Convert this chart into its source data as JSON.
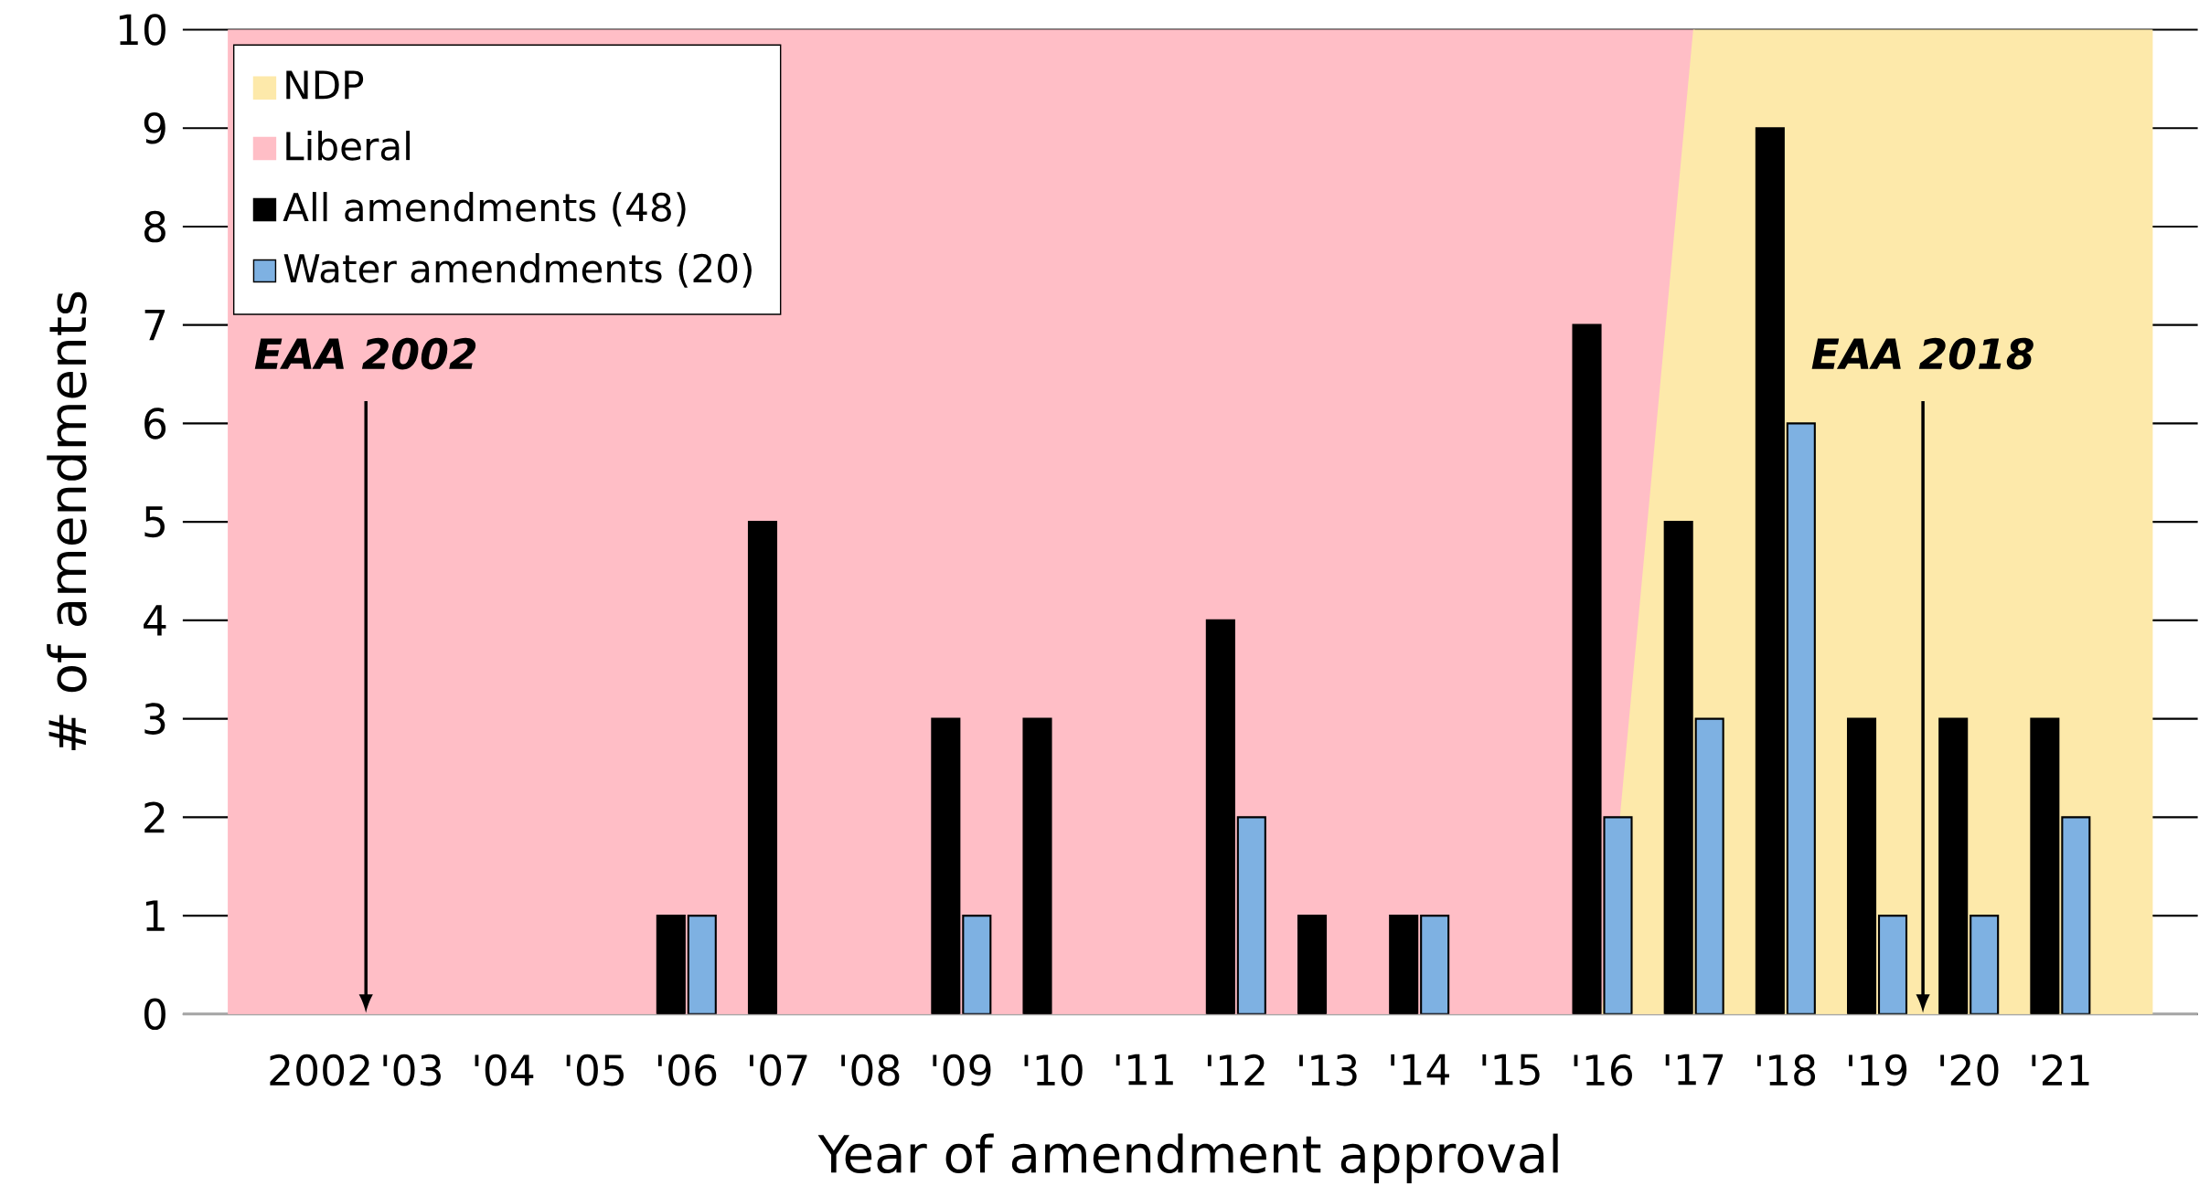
{
  "chart_data": {
    "type": "bar",
    "xlabel": "Year of amendment approval",
    "ylabel": "# of amendments",
    "categories": [
      null,
      "2002",
      "'03",
      "'04",
      "'05",
      "'06",
      "'07",
      "'08",
      "'09",
      "'10",
      "'11",
      "'12",
      "'13",
      "'14",
      "'15",
      "'16",
      "'17",
      "'18",
      "'19",
      "'20",
      "'21",
      null
    ],
    "series": [
      {
        "name": "NDP",
        "type": "area",
        "color": "#fde9aa",
        "values": [
          null,
          null,
          null,
          null,
          null,
          null,
          null,
          null,
          null,
          null,
          null,
          null,
          null,
          null,
          null,
          0,
          10,
          10,
          10,
          10,
          10,
          10
        ]
      },
      {
        "name": "Liberal",
        "type": "area",
        "color": "#ffbec6",
        "values": [
          10,
          10,
          10,
          10,
          10,
          10,
          10,
          10,
          10,
          10,
          10,
          10,
          10,
          10,
          10,
          10,
          10,
          null,
          null,
          null,
          null,
          null
        ]
      },
      {
        "name": "All amendments (48)",
        "color": "#000000",
        "values": [
          null,
          null,
          null,
          null,
          null,
          1,
          5,
          null,
          3,
          3,
          null,
          4,
          1,
          1,
          null,
          7,
          5,
          9,
          3,
          3,
          3,
          null
        ]
      },
      {
        "name": "Water amendments (20)",
        "color": "#7eb1e2",
        "values": [
          null,
          null,
          null,
          null,
          null,
          1,
          null,
          null,
          1,
          null,
          null,
          2,
          null,
          1,
          null,
          2,
          3,
          6,
          1,
          1,
          2,
          null
        ]
      }
    ],
    "ylim": [
      0,
      10
    ],
    "yticks": [
      0,
      1,
      2,
      3,
      4,
      5,
      6,
      7,
      8,
      9,
      10
    ],
    "grid": "y",
    "legend": "top left",
    "annotations": [
      "EAA 2002",
      "EAA 2018"
    ]
  }
}
